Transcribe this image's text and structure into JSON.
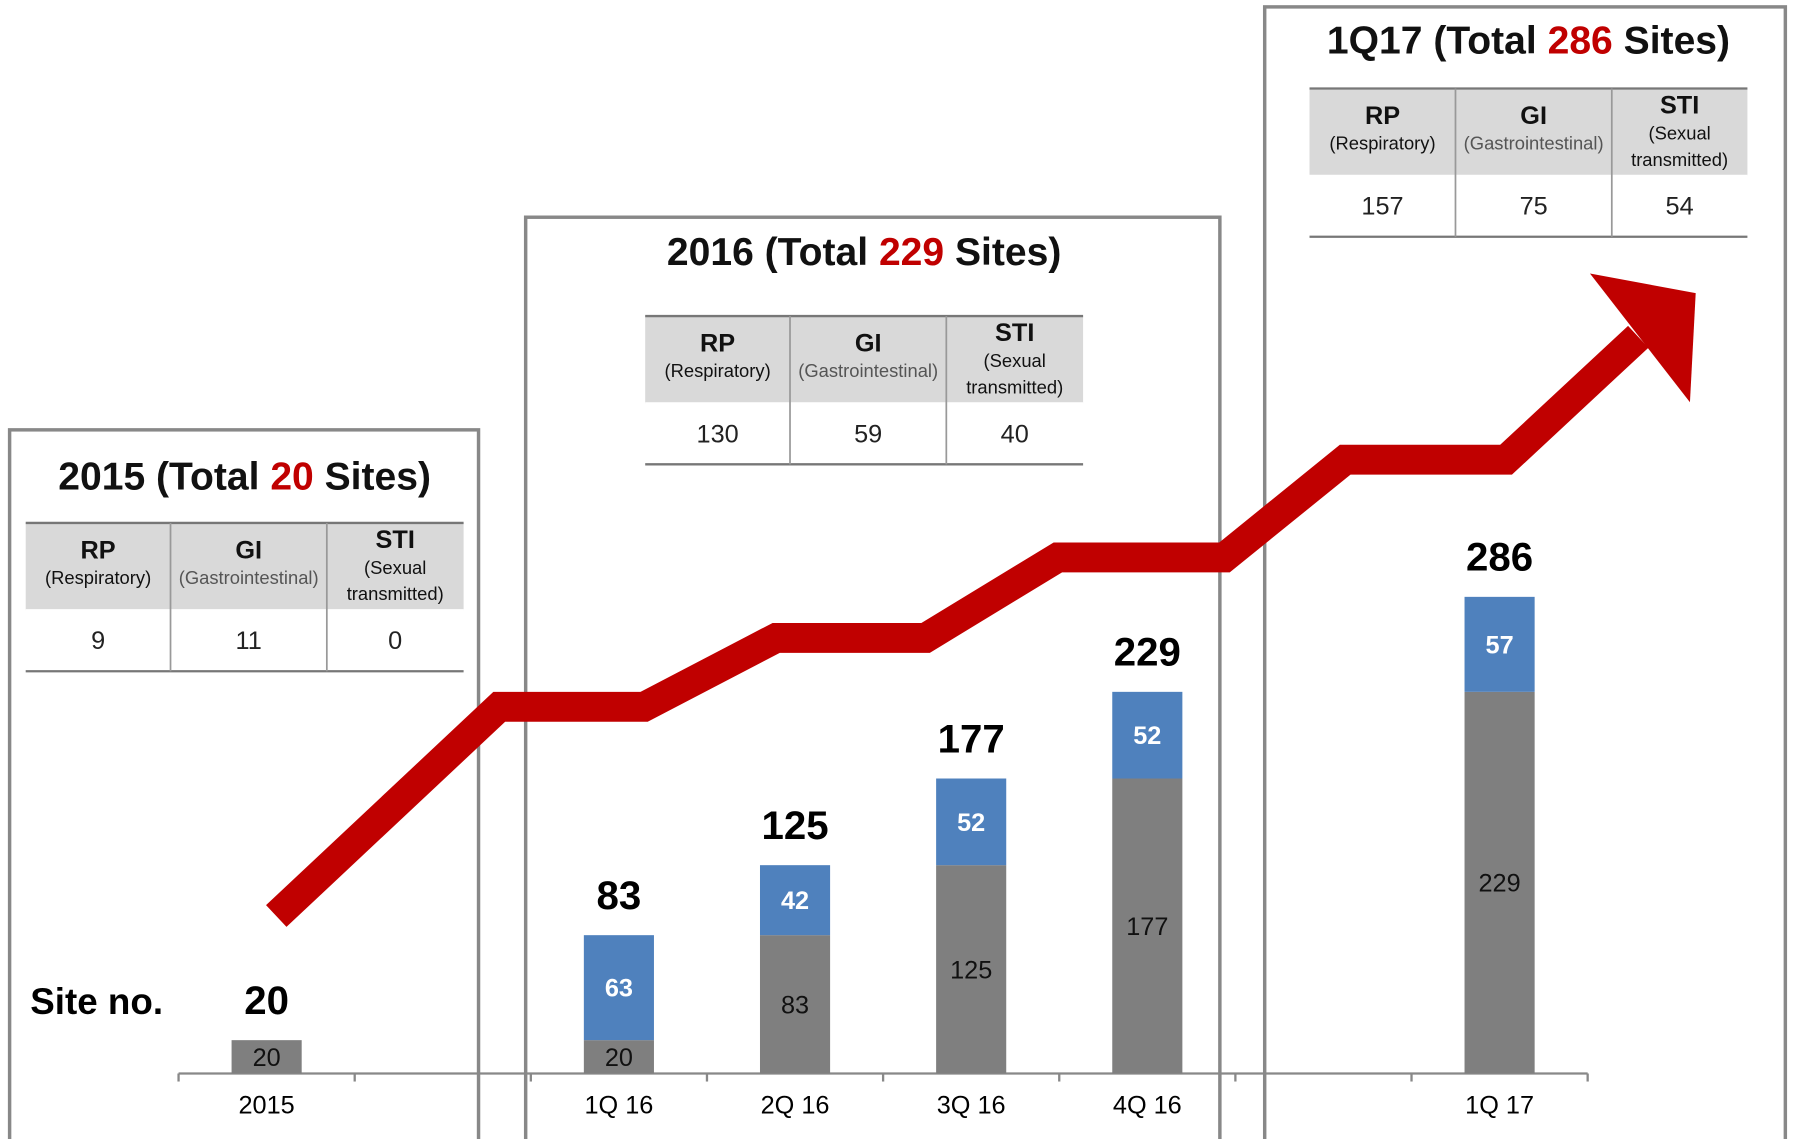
{
  "chart_data": {
    "type": "bar",
    "stacked": true,
    "y_label": "Site no.",
    "categories": [
      "2015",
      null,
      "1Q 16",
      "2Q 16",
      "3Q 16",
      "4Q 16",
      null,
      "1Q 17"
    ],
    "series": [
      {
        "color": "#7f7f7f",
        "values": [
          20,
          null,
          20,
          83,
          125,
          177,
          null,
          229
        ]
      },
      {
        "color": "#4f81bd",
        "values": [
          null,
          null,
          63,
          42,
          52,
          52,
          null,
          57
        ]
      }
    ],
    "totals": [
      20,
      null,
      83,
      125,
      177,
      229,
      null,
      286
    ],
    "ylim": [
      0,
      300
    ]
  },
  "panels": [
    {
      "year": "2015",
      "total_open": "(Total",
      "total": 20,
      "total_close": "Sites)",
      "headers": [
        {
          "abbr": "RP",
          "name": [
            "(Respiratory)"
          ]
        },
        {
          "abbr": "GI",
          "name": [
            "(Gastrointestinal)"
          ]
        },
        {
          "abbr": "STI",
          "name": [
            "(Sexual",
            "transmitted)"
          ]
        }
      ],
      "values": [
        9,
        11,
        0
      ]
    },
    {
      "year": "2016",
      "total_open": "(Total",
      "total": 229,
      "total_close": "Sites)",
      "headers": [
        {
          "abbr": "RP",
          "name": [
            "(Respiratory)"
          ]
        },
        {
          "abbr": "GI",
          "name": [
            "(Gastrointestinal)"
          ]
        },
        {
          "abbr": "STI",
          "name": [
            "(Sexual",
            "transmitted)"
          ]
        }
      ],
      "values": [
        130,
        59,
        40
      ]
    },
    {
      "year": "1Q17",
      "total_open": "(Total",
      "total": 286,
      "total_close": "Sites)",
      "headers": [
        {
          "abbr": "RP",
          "name": [
            "(Respiratory)"
          ]
        },
        {
          "abbr": "GI",
          "name": [
            "(Gastrointestinal)"
          ]
        },
        {
          "abbr": "STI",
          "name": [
            "(Sexual",
            "transmitted)"
          ]
        }
      ],
      "values": [
        157,
        75,
        54
      ]
    }
  ]
}
